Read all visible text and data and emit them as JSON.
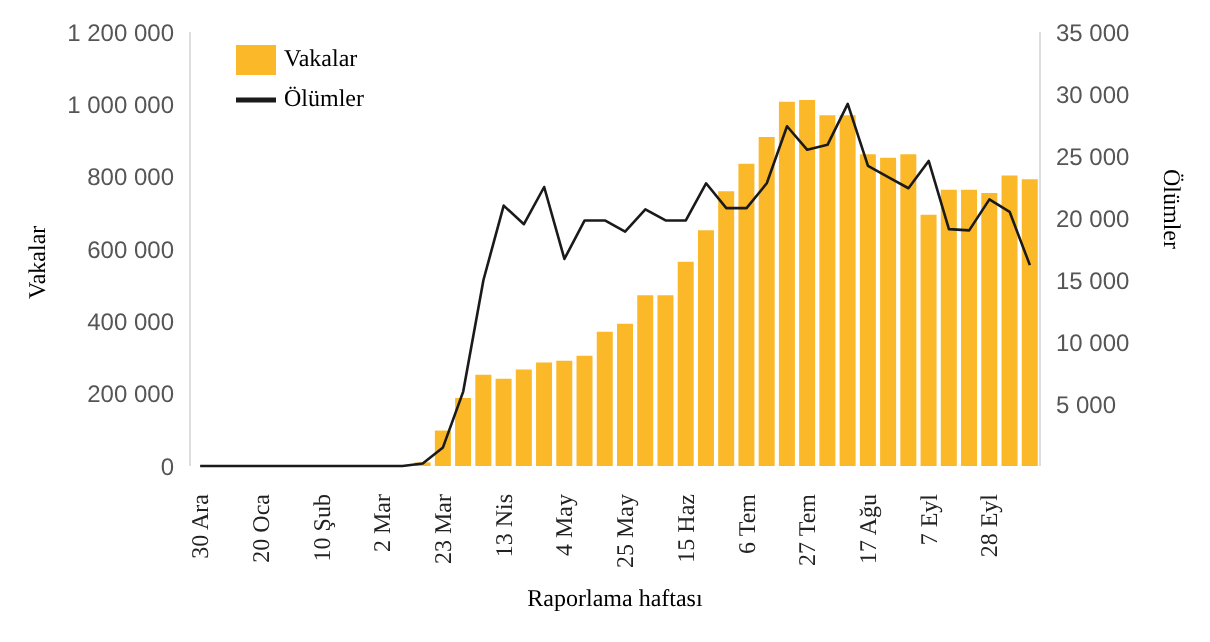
{
  "chart_data": {
    "type": "bar",
    "xlabel": "Raporlama haftası",
    "ylabel": "Vakalar",
    "y2label": "Ölümler",
    "categories": [
      "30 Ara",
      null,
      null,
      "20 Oca",
      null,
      null,
      "10 Şub",
      null,
      null,
      "2 Mar",
      null,
      null,
      "23 Mar",
      null,
      null,
      "13 Nis",
      null,
      null,
      "4 May",
      null,
      null,
      "25 May",
      null,
      null,
      "15 Haz",
      null,
      null,
      "6 Tem",
      null,
      null,
      "27 Tem",
      null,
      null,
      "17 Ağu",
      null,
      null,
      "7 Eyl",
      null,
      null,
      "28 Eyl",
      null,
      null
    ],
    "series": [
      {
        "name": "Vakalar",
        "color": "#fbb829",
        "values": [
          0,
          0,
          0,
          0,
          0,
          0,
          0,
          0,
          0,
          0,
          0,
          10000,
          98000,
          188000,
          252000,
          241000,
          267000,
          286000,
          291000,
          305000,
          371000,
          393000,
          472000,
          472000,
          565000,
          652000,
          760000,
          836000,
          910000,
          1007000,
          1012000,
          970000,
          970000,
          862000,
          852000,
          862000,
          695000,
          764000,
          764000,
          755000,
          803000,
          793000
        ]
      },
      {
        "name": "Ölümler",
        "type": "line",
        "axis": "y2",
        "color": "#1a1a1a",
        "values": [
          0,
          0,
          0,
          0,
          0,
          0,
          0,
          0,
          0,
          0,
          0,
          200,
          1500,
          6000,
          15000,
          21000,
          19500,
          22500,
          16700,
          19800,
          19800,
          18900,
          20700,
          19800,
          19800,
          22800,
          20800,
          20800,
          22800,
          27400,
          25500,
          25900,
          29200,
          24200,
          23300,
          22400,
          24600,
          19100,
          19000,
          21500,
          20500,
          16200
        ]
      }
    ],
    "ylim": [
      0,
      1200000
    ],
    "yticks": [
      {
        "value": 0,
        "label": "0"
      },
      {
        "value": 200000,
        "label": "200 000"
      },
      {
        "value": 400000,
        "label": "400 000"
      },
      {
        "value": 600000,
        "label": "600 000"
      },
      {
        "value": 800000,
        "label": "800 000"
      },
      {
        "value": 1000000,
        "label": "1 000 000"
      },
      {
        "value": 1200000,
        "label": "1 200 000"
      }
    ],
    "y2lim": [
      0,
      35000
    ],
    "y2ticks": [
      {
        "value": 5000,
        "label": "5 000"
      },
      {
        "value": 10000,
        "label": "10 000"
      },
      {
        "value": 15000,
        "label": "15 000"
      },
      {
        "value": 20000,
        "label": "20 000"
      },
      {
        "value": 25000,
        "label": "25 000"
      },
      {
        "value": 30000,
        "label": "30 000"
      },
      {
        "value": 35000,
        "label": "35 000"
      }
    ],
    "legend": "top left",
    "grid": false,
    "marker": "none",
    "line_style": "solid"
  }
}
